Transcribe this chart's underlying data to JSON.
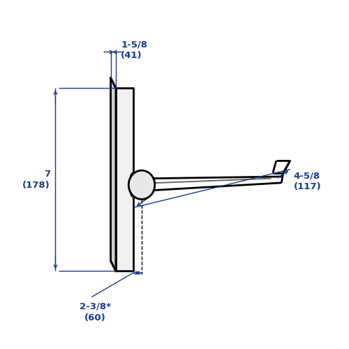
{
  "bg_color": "#ffffff",
  "line_color": "#000000",
  "dim_color": "#1a3a8a",
  "fig_size": [
    5.0,
    5.0
  ],
  "dpi": 100,
  "annotations": {
    "top_dim_label": "1-5/8\n(41)",
    "left_dim_label": "7\n(178)",
    "right_dim_label": "4-5/8\n(117)",
    "bottom_dim_label": "2-3/8*\n(60)"
  },
  "lw_main": 2.0,
  "lw_dim": 1.0,
  "lw_thin": 1.2
}
